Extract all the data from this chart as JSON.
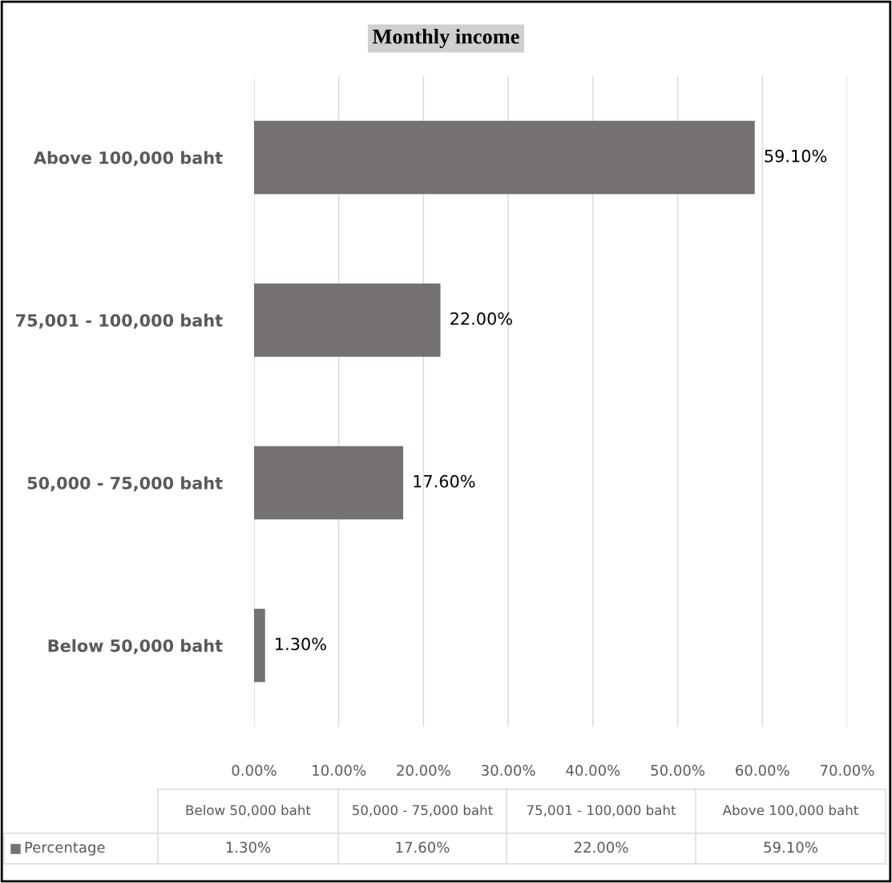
{
  "chart_data": {
    "type": "bar",
    "orientation": "horizontal",
    "title": "Monthly income",
    "categories": [
      "Above 100,000 baht",
      "75,001 - 100,000 baht",
      "50,000 - 75,000 baht",
      "Below 50,000 baht"
    ],
    "series": [
      {
        "name": "Percentage",
        "color": "#767171",
        "values": [
          59.1,
          22.0,
          17.6,
          1.3
        ],
        "value_labels": [
          "59.10%",
          "22.00%",
          "17.60%",
          "1.30%"
        ]
      }
    ],
    "xlim": [
      0,
      70
    ],
    "xticks": [
      {
        "value": 0,
        "label": "0.00%"
      },
      {
        "value": 10,
        "label": "10.00%"
      },
      {
        "value": 20,
        "label": "20.00%"
      },
      {
        "value": 30,
        "label": "30.00%"
      },
      {
        "value": 40,
        "label": "40.00%"
      },
      {
        "value": 50,
        "label": "50.00%"
      },
      {
        "value": 60,
        "label": "60.00%"
      },
      {
        "value": 70,
        "label": "70.00%"
      }
    ],
    "grid": "x",
    "legend": "bottom"
  }
}
